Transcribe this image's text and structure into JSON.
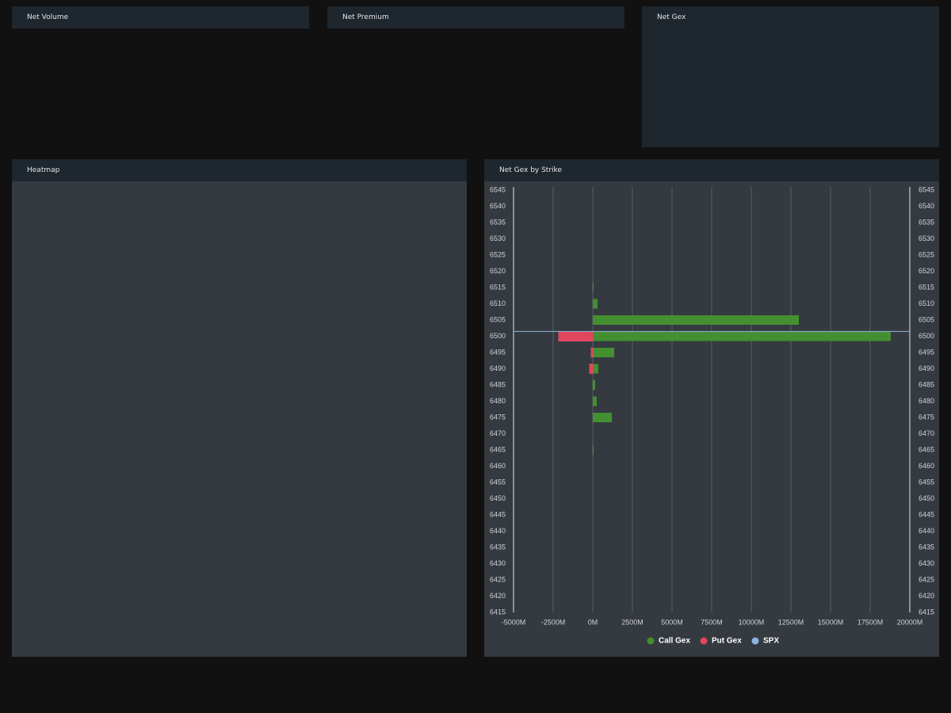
{
  "panels": [
    {
      "title": "Net Volume"
    },
    {
      "title": "Net Premium"
    },
    {
      "title": "Net Gex"
    },
    {
      "title": "Heatmap"
    }
  ],
  "chart_data": {
    "type": "bar",
    "orientation": "horizontal",
    "title": "Net Gex by Strike",
    "y": [
      6545,
      6540,
      6535,
      6530,
      6525,
      6520,
      6515,
      6510,
      6505,
      6500,
      6495,
      6490,
      6485,
      6480,
      6475,
      6470,
      6465,
      6460,
      6455,
      6450,
      6445,
      6440,
      6435,
      6430,
      6425,
      6420,
      6415
    ],
    "series": [
      {
        "name": "Call Gex",
        "color": "#448f31",
        "values": [
          0,
          0,
          0,
          0,
          0,
          0,
          50,
          300,
          13000,
          18800,
          1350,
          350,
          150,
          250,
          1200,
          0,
          50,
          0,
          0,
          0,
          0,
          0,
          0,
          0,
          0,
          0,
          0
        ]
      },
      {
        "name": "Put Gex",
        "color": "#e0475e",
        "values": [
          0,
          0,
          0,
          0,
          0,
          0,
          0,
          0,
          0,
          -2150,
          -100,
          -200,
          0,
          0,
          0,
          0,
          0,
          0,
          0,
          0,
          0,
          0,
          0,
          0,
          0,
          0,
          0
        ]
      }
    ],
    "spx": {
      "name": "SPX",
      "color": "#8fb3e0",
      "value": 6501.5
    },
    "xlim": [
      -5000,
      20000
    ],
    "xticks": [
      {
        "value": -5000,
        "label": "-5000M"
      },
      {
        "value": -2500,
        "label": "-2500M"
      },
      {
        "value": 0,
        "label": "0M"
      },
      {
        "value": 2500,
        "label": "2500M"
      },
      {
        "value": 5000,
        "label": "5000M"
      },
      {
        "value": 7500,
        "label": "7500M"
      },
      {
        "value": 10000,
        "label": "10000M"
      },
      {
        "value": 12500,
        "label": "12500M"
      },
      {
        "value": 15000,
        "label": "15000M"
      },
      {
        "value": 17500,
        "label": "17500M"
      },
      {
        "value": 20000,
        "label": "20000M"
      }
    ],
    "ylim": [
      6415,
      6545
    ],
    "yticks": [
      6545,
      6540,
      6535,
      6530,
      6525,
      6520,
      6515,
      6510,
      6505,
      6500,
      6495,
      6490,
      6485,
      6480,
      6475,
      6470,
      6465,
      6460,
      6455,
      6450,
      6445,
      6440,
      6435,
      6430,
      6425,
      6420,
      6415
    ],
    "grid": true
  }
}
